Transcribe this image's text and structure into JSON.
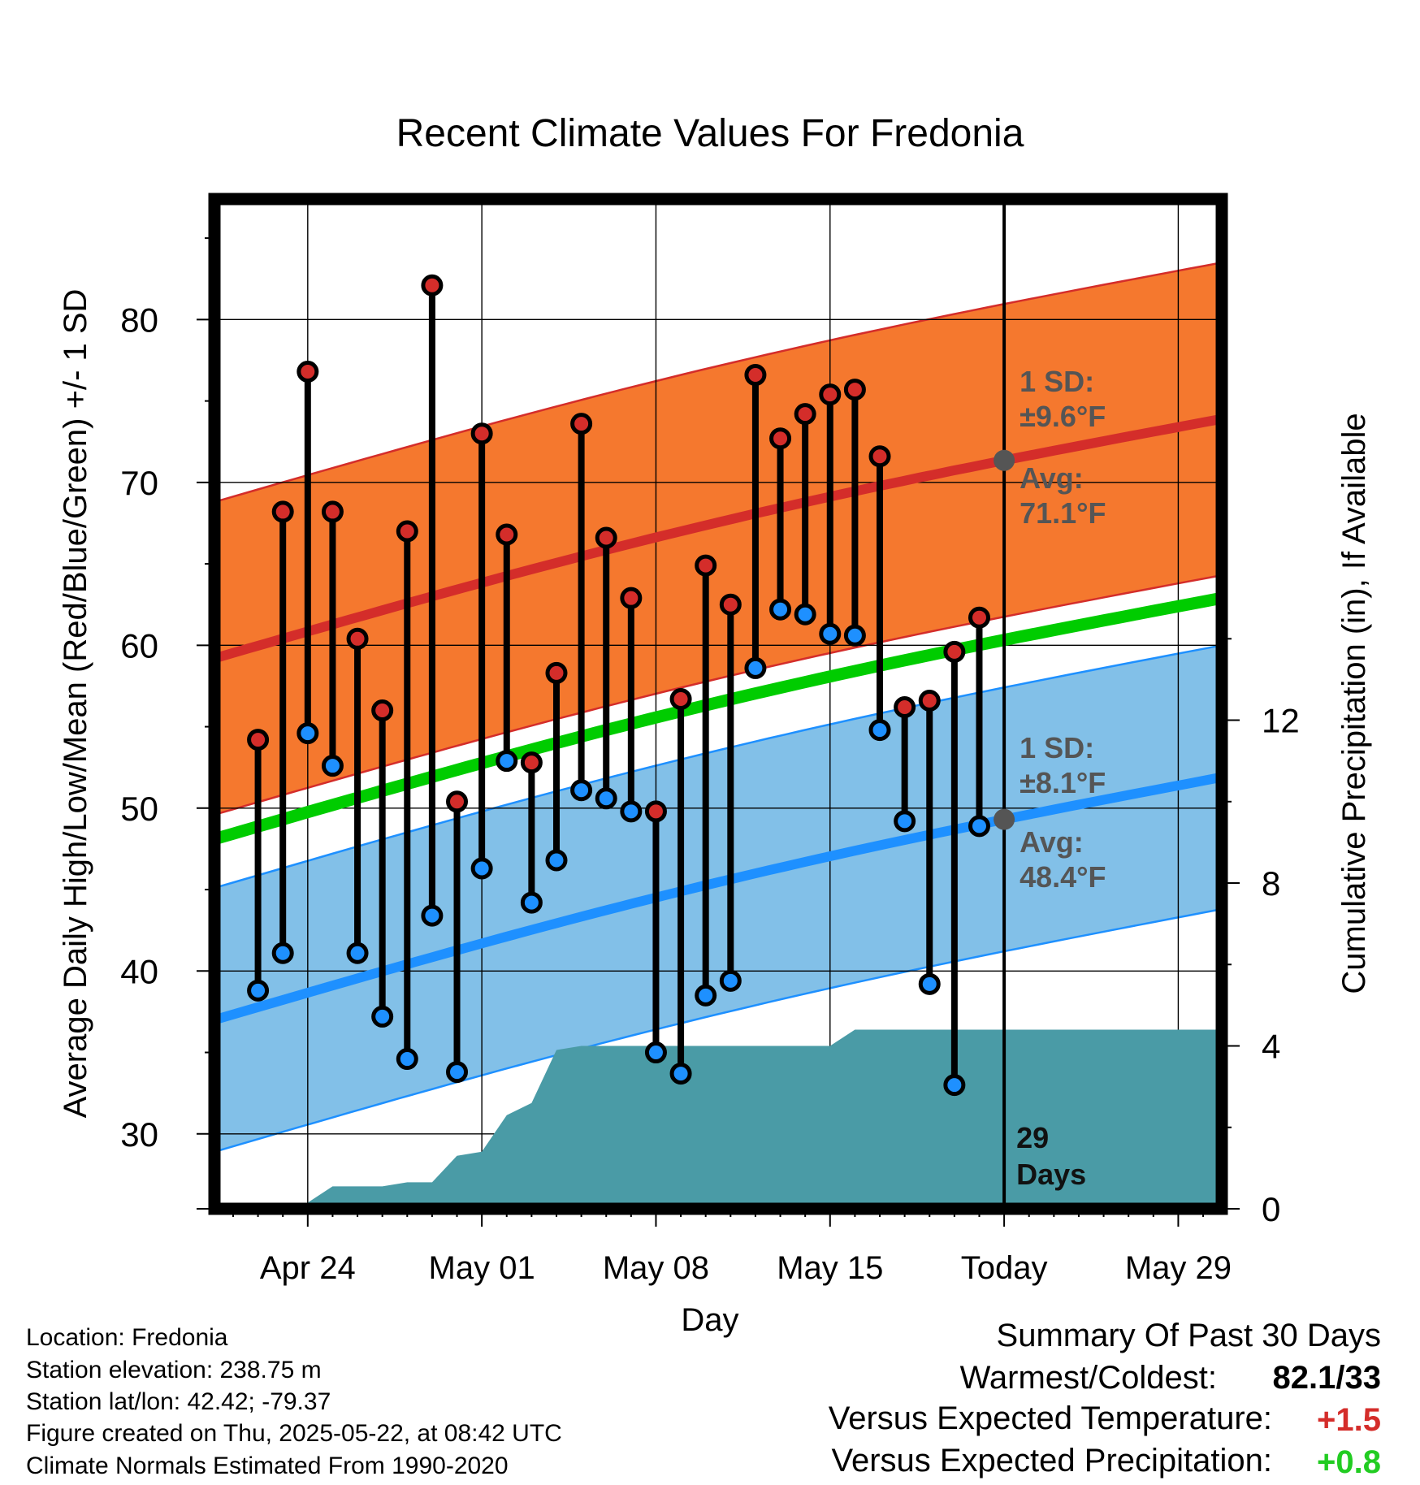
{
  "chart_data": {
    "type": "line",
    "title": "Recent Climate Values For Fredonia",
    "xlabel": "Day",
    "ylabel": "Average Daily High/Low/Mean (Red/Blue/Green) +/- 1 SD",
    "y2label": "Cumulative Precipitation (in), If Available",
    "xticks": [
      "Apr 24",
      "May 01",
      "May 08",
      "May 15",
      "Today",
      "May 29"
    ],
    "xtick_days": [
      2,
      9,
      16,
      23,
      30,
      37
    ],
    "xlim_days": [
      -1.75,
      38.75
    ],
    "yticks": [
      30,
      40,
      50,
      60,
      70,
      80
    ],
    "ylim": [
      25.4,
      87.4
    ],
    "y2ticks": [
      0,
      4,
      8,
      12
    ],
    "y2lim": [
      0,
      24.8
    ],
    "highs": [
      54.2,
      68.2,
      76.8,
      68.2,
      60.4,
      56.0,
      67.0,
      82.1,
      50.4,
      73.0,
      66.8,
      52.8,
      58.3,
      73.6,
      66.6,
      62.9,
      49.8,
      56.7,
      64.9,
      62.5,
      76.6,
      72.7,
      74.2,
      75.4,
      75.7,
      71.6,
      56.2,
      56.6,
      59.6,
      61.7
    ],
    "lows": [
      38.8,
      41.1,
      54.6,
      52.6,
      41.1,
      37.2,
      34.6,
      43.4,
      33.8,
      46.3,
      52.9,
      44.2,
      46.8,
      51.1,
      50.6,
      49.8,
      35.0,
      33.7,
      38.5,
      39.4,
      58.6,
      62.2,
      61.9,
      60.7,
      60.6,
      54.8,
      49.2,
      39.2,
      33.0,
      48.9
    ],
    "normal_high": {
      "start": 59.2,
      "end": 73.9
    },
    "normal_low": {
      "start": 37.0,
      "end": 51.9
    },
    "normal_mean": {
      "start": 48.1,
      "end": 62.9
    },
    "high_sd_label": "1 SD:",
    "high_sd_value": "±9.6°F",
    "low_sd_label": "1 SD:",
    "low_sd_value": "±8.1°F",
    "avg_label": "Avg:",
    "avg_high_today": "71.1°F",
    "avg_low_today": "48.4°F",
    "high_sd": 9.6,
    "low_sd": 8.1,
    "today_marker": "29",
    "today_marker_unit": "Days",
    "precip_cumulative": [
      0,
      0,
      0,
      0.15,
      0.55,
      0.55,
      0.55,
      0.65,
      0.65,
      1.3,
      1.4,
      2.3,
      2.6,
      3.9,
      4.0,
      4.0,
      4.0,
      4.0,
      4.0,
      4.0,
      4.0,
      4.0,
      4.0,
      4.0,
      4.0,
      4.4,
      4.4,
      4.4,
      4.4,
      4.4,
      4.4,
      4.4,
      4.4,
      4.4,
      4.4,
      4.4,
      4.4,
      4.4,
      4.4,
      4.4,
      4.4
    ],
    "precip_start_day": -1,
    "colors": {
      "high": "#d42d2a",
      "low": "#1e90ff",
      "mean": "#00cc00",
      "high_band": "#f5782e",
      "low_band": "#82c0e8",
      "precip": "#4a9ba6",
      "annotation": "#555555"
    }
  },
  "footer": {
    "location": "Location: Fredonia",
    "elevation": "Station elevation: 238.75 m",
    "latlon": "Station lat/lon: 42.42; -79.37",
    "created": "Figure created on Thu, 2025-05-22, at 08:42 UTC",
    "normals": "Climate Normals Estimated From 1990-2020"
  },
  "summary": {
    "title": "Summary Of Past 30 Days",
    "warm_cold_label": "Warmest/Coldest:",
    "warm_cold_value": "82.1/33",
    "temp_label": "Versus Expected Temperature:",
    "temp_value": "+1.5",
    "temp_color": "#d42d2a",
    "precip_label": "Versus Expected Precipitation:",
    "precip_value": "+0.8",
    "precip_color": "#22cc22"
  }
}
